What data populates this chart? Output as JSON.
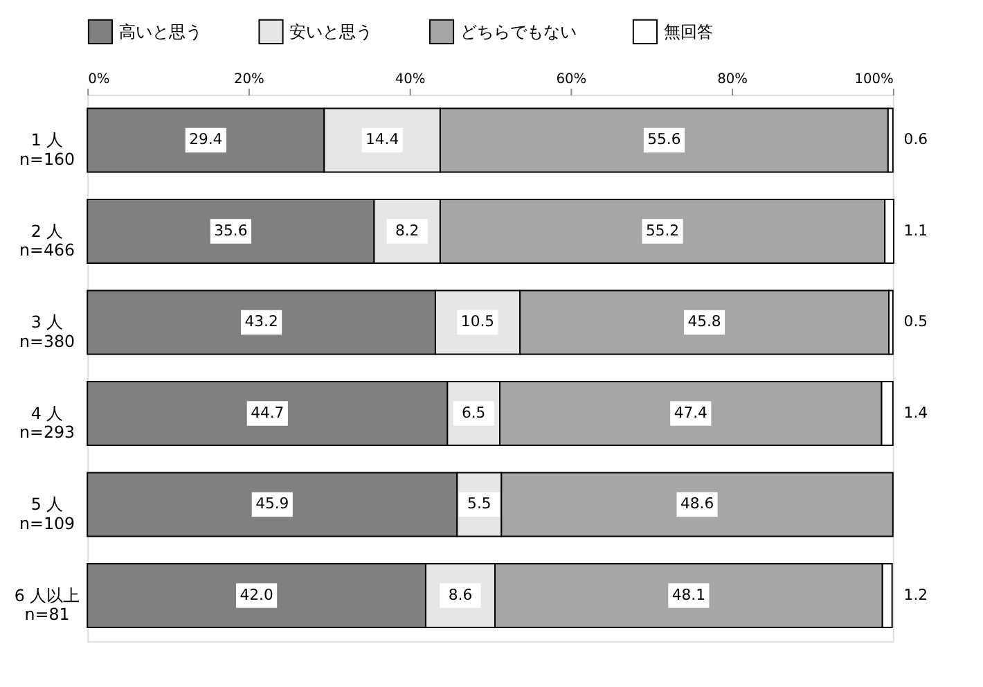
{
  "chart_data": {
    "type": "bar",
    "orientation": "horizontal",
    "stacked": true,
    "data_labels": true,
    "legend": "top",
    "grid": false,
    "categories": [
      "1 人\nn=160",
      "2 人\nn=466",
      "3 人\nn=380",
      "4 人\nn=293",
      "5 人\nn=109",
      "6 人以上\nn=81"
    ],
    "xlim": [
      0,
      100
    ],
    "xticks": [
      {
        "value": 0,
        "label": "0%"
      },
      {
        "value": 20,
        "label": "20%"
      },
      {
        "value": 40,
        "label": "40%"
      },
      {
        "value": 60,
        "label": "60%"
      },
      {
        "value": 80,
        "label": "80%"
      },
      {
        "value": 100,
        "label": "100%"
      }
    ],
    "series": [
      {
        "name": "高いと思う",
        "color": "#808080",
        "values": [
          29.4,
          35.6,
          43.2,
          44.7,
          45.9,
          42.0
        ],
        "value_labels": [
          "29.4",
          "35.6",
          "43.2",
          "44.7",
          "45.9",
          "42.0"
        ]
      },
      {
        "name": "安いと思う",
        "color": "#e6e6e6",
        "values": [
          14.4,
          8.2,
          10.5,
          6.5,
          5.5,
          8.6
        ]
      },
      {
        "name": "どちらでもない",
        "color": "#a6a6a6",
        "values": [
          55.6,
          55.2,
          45.8,
          47.4,
          48.6,
          48.1
        ]
      },
      {
        "name": "無回答",
        "color": "#ffffff",
        "values": [
          0.6,
          1.1,
          0.5,
          1.4,
          null,
          1.2
        ]
      }
    ]
  }
}
